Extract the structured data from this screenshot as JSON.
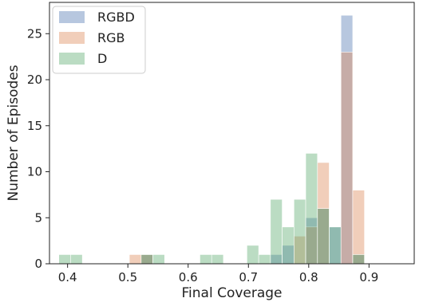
{
  "chart_data": {
    "type": "bar",
    "title": "",
    "xlabel": "Final Coverage",
    "ylabel": "Number of Episodes",
    "xlim": [
      0.37,
      0.975
    ],
    "ylim": [
      0,
      28.4
    ],
    "xticks": [
      "0.4",
      "0.5",
      "0.6",
      "0.7",
      "0.8",
      "0.9"
    ],
    "xtick_values": [
      0.4,
      0.5,
      0.6,
      0.7,
      0.8,
      0.9
    ],
    "yticks": [
      "0",
      "5",
      "10",
      "15",
      "20",
      "25"
    ],
    "ytick_values": [
      0,
      5,
      10,
      15,
      20,
      25
    ],
    "grid": false,
    "legend_position": "top-left",
    "bin_width": 0.0195,
    "bin_start": 0.3855,
    "series": [
      {
        "name": "RGBD",
        "color": "#4c72b0",
        "values": [
          0,
          0,
          0,
          0,
          0,
          0,
          0,
          1,
          0,
          0,
          0,
          0,
          0,
          0,
          0,
          0,
          0,
          0,
          1,
          2,
          0,
          5,
          6,
          4,
          27,
          1
        ]
      },
      {
        "name": "RGB",
        "color": "#dd8452",
        "values": [
          0,
          0,
          0,
          0,
          0,
          0,
          1,
          1,
          0,
          0,
          0,
          0,
          0,
          0,
          0,
          0,
          0,
          0,
          0,
          0,
          3,
          4,
          11,
          0,
          23,
          8
        ]
      },
      {
        "name": "D",
        "color": "#55a868",
        "values": [
          1,
          1,
          0,
          0,
          0,
          0,
          0,
          1,
          1,
          0,
          0,
          0,
          1,
          1,
          0,
          0,
          2,
          1,
          7,
          4,
          7,
          12,
          6,
          4,
          0,
          1
        ]
      }
    ]
  }
}
